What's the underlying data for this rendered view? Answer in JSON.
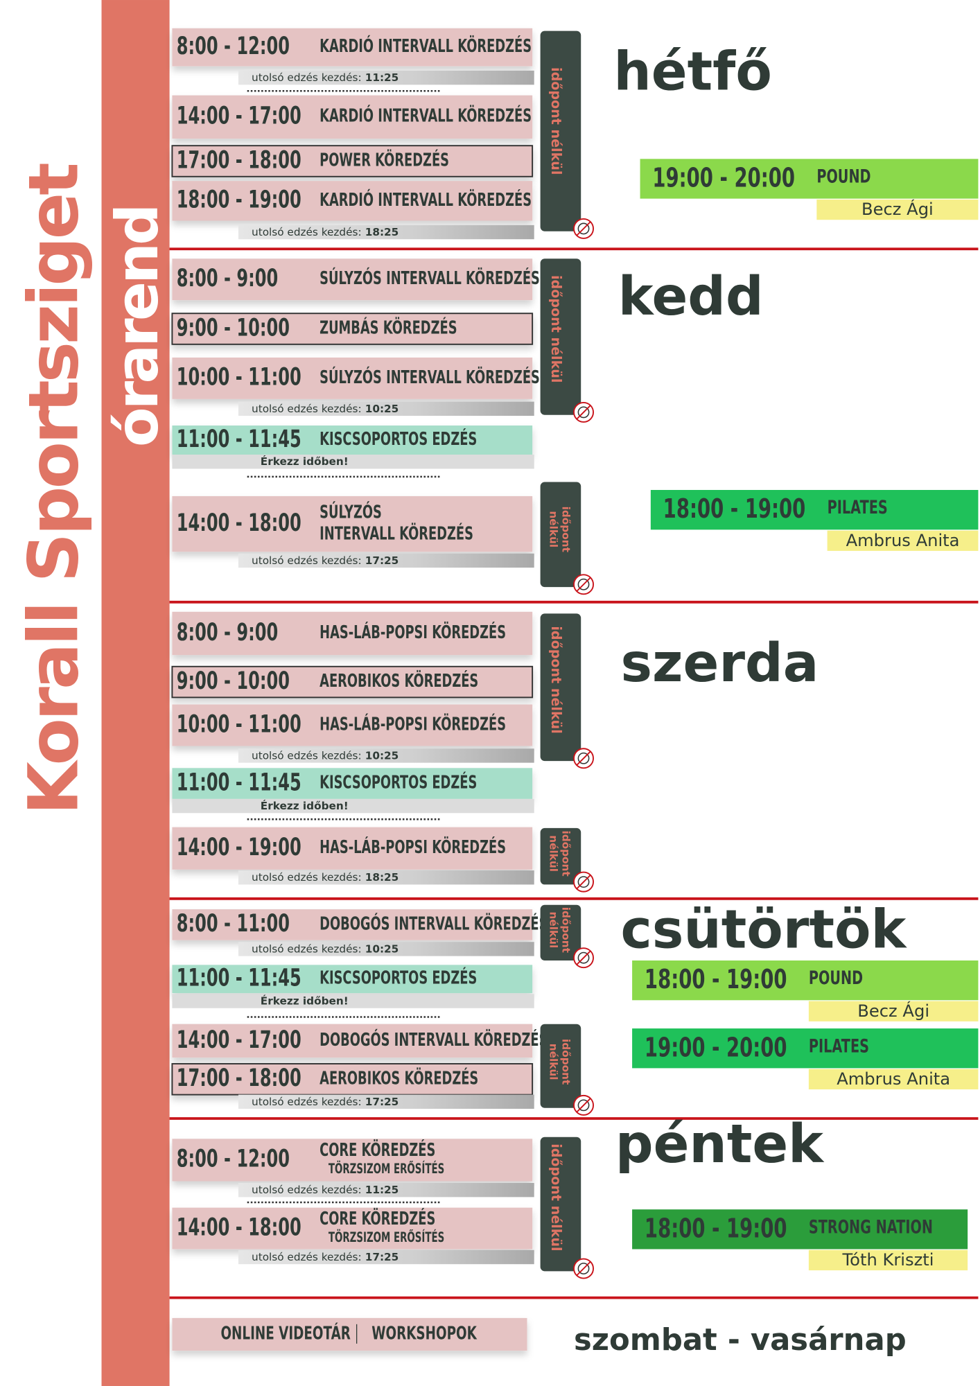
{
  "title": "Korall Sportsziget",
  "subtitle": "órarend",
  "days": [
    {
      "name": "hétfő",
      "classes": [
        {
          "time": "8:00 - 12:00",
          "name": [
            "KARDIÓ INTERVALL KÖREDZÉS"
          ],
          "note": "utolsó edzés kezdés:",
          "note_time": "11:25"
        },
        {
          "time": "14:00 - 17:00",
          "name": [
            "KARDIÓ INTERVALL KÖREDZÉS"
          ]
        },
        {
          "time": "17:00 - 18:00",
          "name": [
            "POWER KÖREDZÉS"
          ]
        },
        {
          "time": "18:00 - 19:00",
          "name": [
            "KARDIÓ INTERVALL KÖREDZÉS"
          ],
          "note": "utolsó edzés kezdés:",
          "note_time": "18:25"
        }
      ],
      "badges": [
        "időpont nélkül"
      ],
      "evening": [
        {
          "time": "19:00 - 20:00",
          "name": "POUND",
          "instructor": "Becz Ági",
          "color": "#8bd94b"
        }
      ]
    },
    {
      "name": "kedd",
      "classes": [
        {
          "time": "8:00 - 9:00",
          "name": [
            "SÚLYZÓS INTERVALL KÖREDZÉS"
          ]
        },
        {
          "time": "9:00 - 10:00",
          "name": [
            "ZUMBÁS KÖREDZÉS"
          ]
        },
        {
          "time": "10:00 - 11:00",
          "name": [
            "SÚLYZÓS INTERVALL KÖREDZÉS"
          ],
          "note": "utolsó edzés kezdés:",
          "note_time": "10:25"
        },
        {
          "time": "11:00 - 11:45",
          "name": [
            "KISCSOPORTOS EDZÉS"
          ],
          "note": "Érkezz időben!"
        },
        {
          "time": "14:00 - 18:00",
          "name": [
            "SÚLYZÓS",
            "INTERVALL KÖREDZÉS"
          ],
          "note": "utolsó edzés kezdés:",
          "note_time": "17:25"
        }
      ],
      "badges": [
        "időpont nélkül",
        "időpont nélkül"
      ],
      "evening": [
        {
          "time": "18:00 - 19:00",
          "name": "PILATES",
          "instructor": "Ambrus Anita",
          "color": "#1fc15a"
        }
      ]
    },
    {
      "name": "szerda",
      "classes": [
        {
          "time": "8:00 - 9:00",
          "name": [
            "HAS-LÁB-POPSI KÖREDZÉS"
          ]
        },
        {
          "time": "9:00 - 10:00",
          "name": [
            "AEROBIKOS KÖREDZÉS"
          ]
        },
        {
          "time": "10:00 - 11:00",
          "name": [
            "HAS-LÁB-POPSI KÖREDZÉS"
          ],
          "note": "utolsó edzés kezdés:",
          "note_time": "10:25"
        },
        {
          "time": "11:00 - 11:45",
          "name": [
            "KISCSOPORTOS EDZÉS"
          ],
          "note": "Érkezz időben!"
        },
        {
          "time": "14:00 - 19:00",
          "name": [
            "HAS-LÁB-POPSI KÖREDZÉS"
          ],
          "note": "utolsó edzés kezdés:",
          "note_time": "18:25"
        }
      ],
      "badges": [
        "időpont nélkül",
        "időpont nélkül"
      ],
      "evening": []
    },
    {
      "name": "csütörtök",
      "classes": [
        {
          "time": "8:00 - 11:00",
          "name": [
            "DOBOGÓS INTERVALL KÖREDZÉS"
          ],
          "note": "utolsó edzés kezdés:",
          "note_time": "10:25"
        },
        {
          "time": "11:00 - 11:45",
          "name": [
            "KISCSOPORTOS EDZÉS"
          ],
          "note": "Érkezz időben!"
        },
        {
          "time": "14:00 - 17:00",
          "name": [
            "DOBOGÓS INTERVALL KÖREDZÉS"
          ]
        },
        {
          "time": "17:00 - 18:00",
          "name": [
            "AEROBIKOS KÖREDZÉS"
          ],
          "note": "utolsó edzés kezdés:",
          "note_time": "17:25"
        }
      ],
      "badges": [
        "időpont nélkül",
        "időpont nélkül"
      ],
      "evening": [
        {
          "time": "18:00 - 19:00",
          "name": "POUND",
          "instructor": "Becz Ági",
          "color": "#8bd94b"
        },
        {
          "time": "19:00 - 20:00",
          "name": "PILATES",
          "instructor": "Ambrus Anita",
          "color": "#1fc15a"
        }
      ]
    },
    {
      "name": "péntek",
      "classes": [
        {
          "time": "8:00 - 12:00",
          "name": [
            "CORE KÖREDZÉS"
          ],
          "sub": "TÖRZSIZOM ERŐSÍTÉS",
          "note": "utolsó edzés kezdés:",
          "note_time": "11:25"
        },
        {
          "time": "14:00 - 18:00",
          "name": [
            "CORE KÖREDZÉS"
          ],
          "sub": "TÖRZSIZOM ERŐSÍTÉS",
          "note": "utolsó edzés kezdés:",
          "note_time": "17:25"
        }
      ],
      "badges": [
        "időpont nélkül"
      ],
      "evening": [
        {
          "time": "18:00 - 19:00",
          "name": "STRONG NATION",
          "instructor": "Tóth Kriszti",
          "color": "#2b9d3b"
        }
      ]
    }
  ],
  "weekend": {
    "items": [
      "ONLINE VIDEOTÁR",
      "WORKSHOPOK"
    ],
    "label": "szombat - vasárnap"
  }
}
